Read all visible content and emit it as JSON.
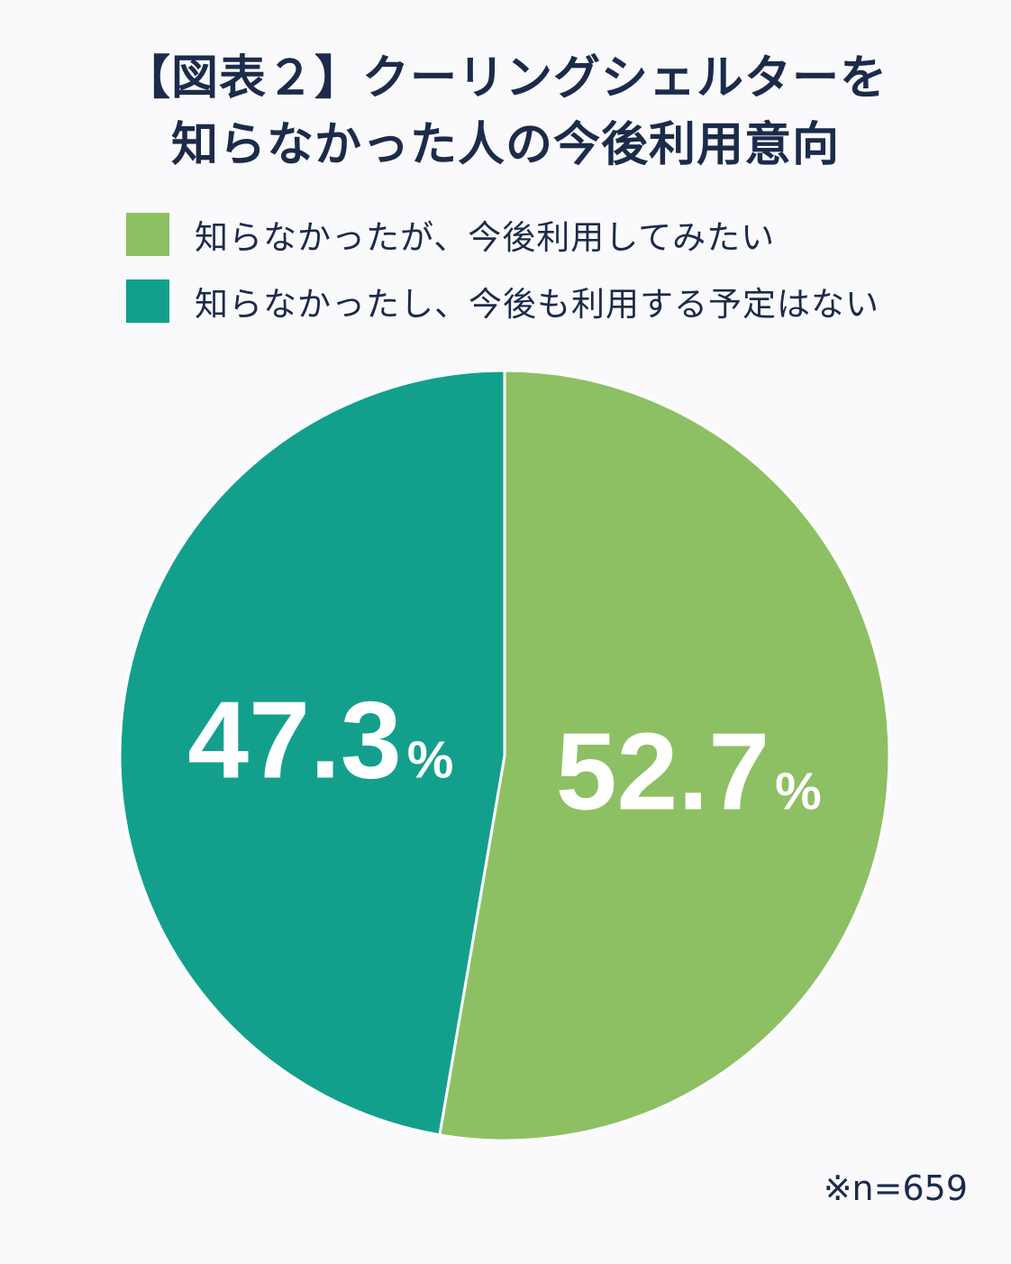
{
  "title": {
    "line1": "【図表２】クーリングシェルターを",
    "line2": "知らなかった人の今後利用意向"
  },
  "legend": [
    {
      "label": "知らなかったが、今後利用してみたい",
      "color": "#8dc063"
    },
    {
      "label": "知らなかったし、今後も利用する予定はない",
      "color": "#12a08d"
    }
  ],
  "note": "※n=659",
  "chart_data": {
    "type": "pie",
    "title": "【図表２】クーリングシェルターを知らなかった人の今後利用意向",
    "slices": [
      {
        "label": "知らなかったが、今後利用してみたい",
        "value": 52.7,
        "display": "52.7",
        "unit": "%",
        "color": "#8dc063"
      },
      {
        "label": "知らなかったし、今後も利用する予定はない",
        "value": 47.3,
        "display": "47.3",
        "unit": "%",
        "color": "#12a08d"
      }
    ],
    "start": "12 o'clock",
    "direction": "clockwise",
    "legend_position": "top-left",
    "sample_size": 659
  }
}
